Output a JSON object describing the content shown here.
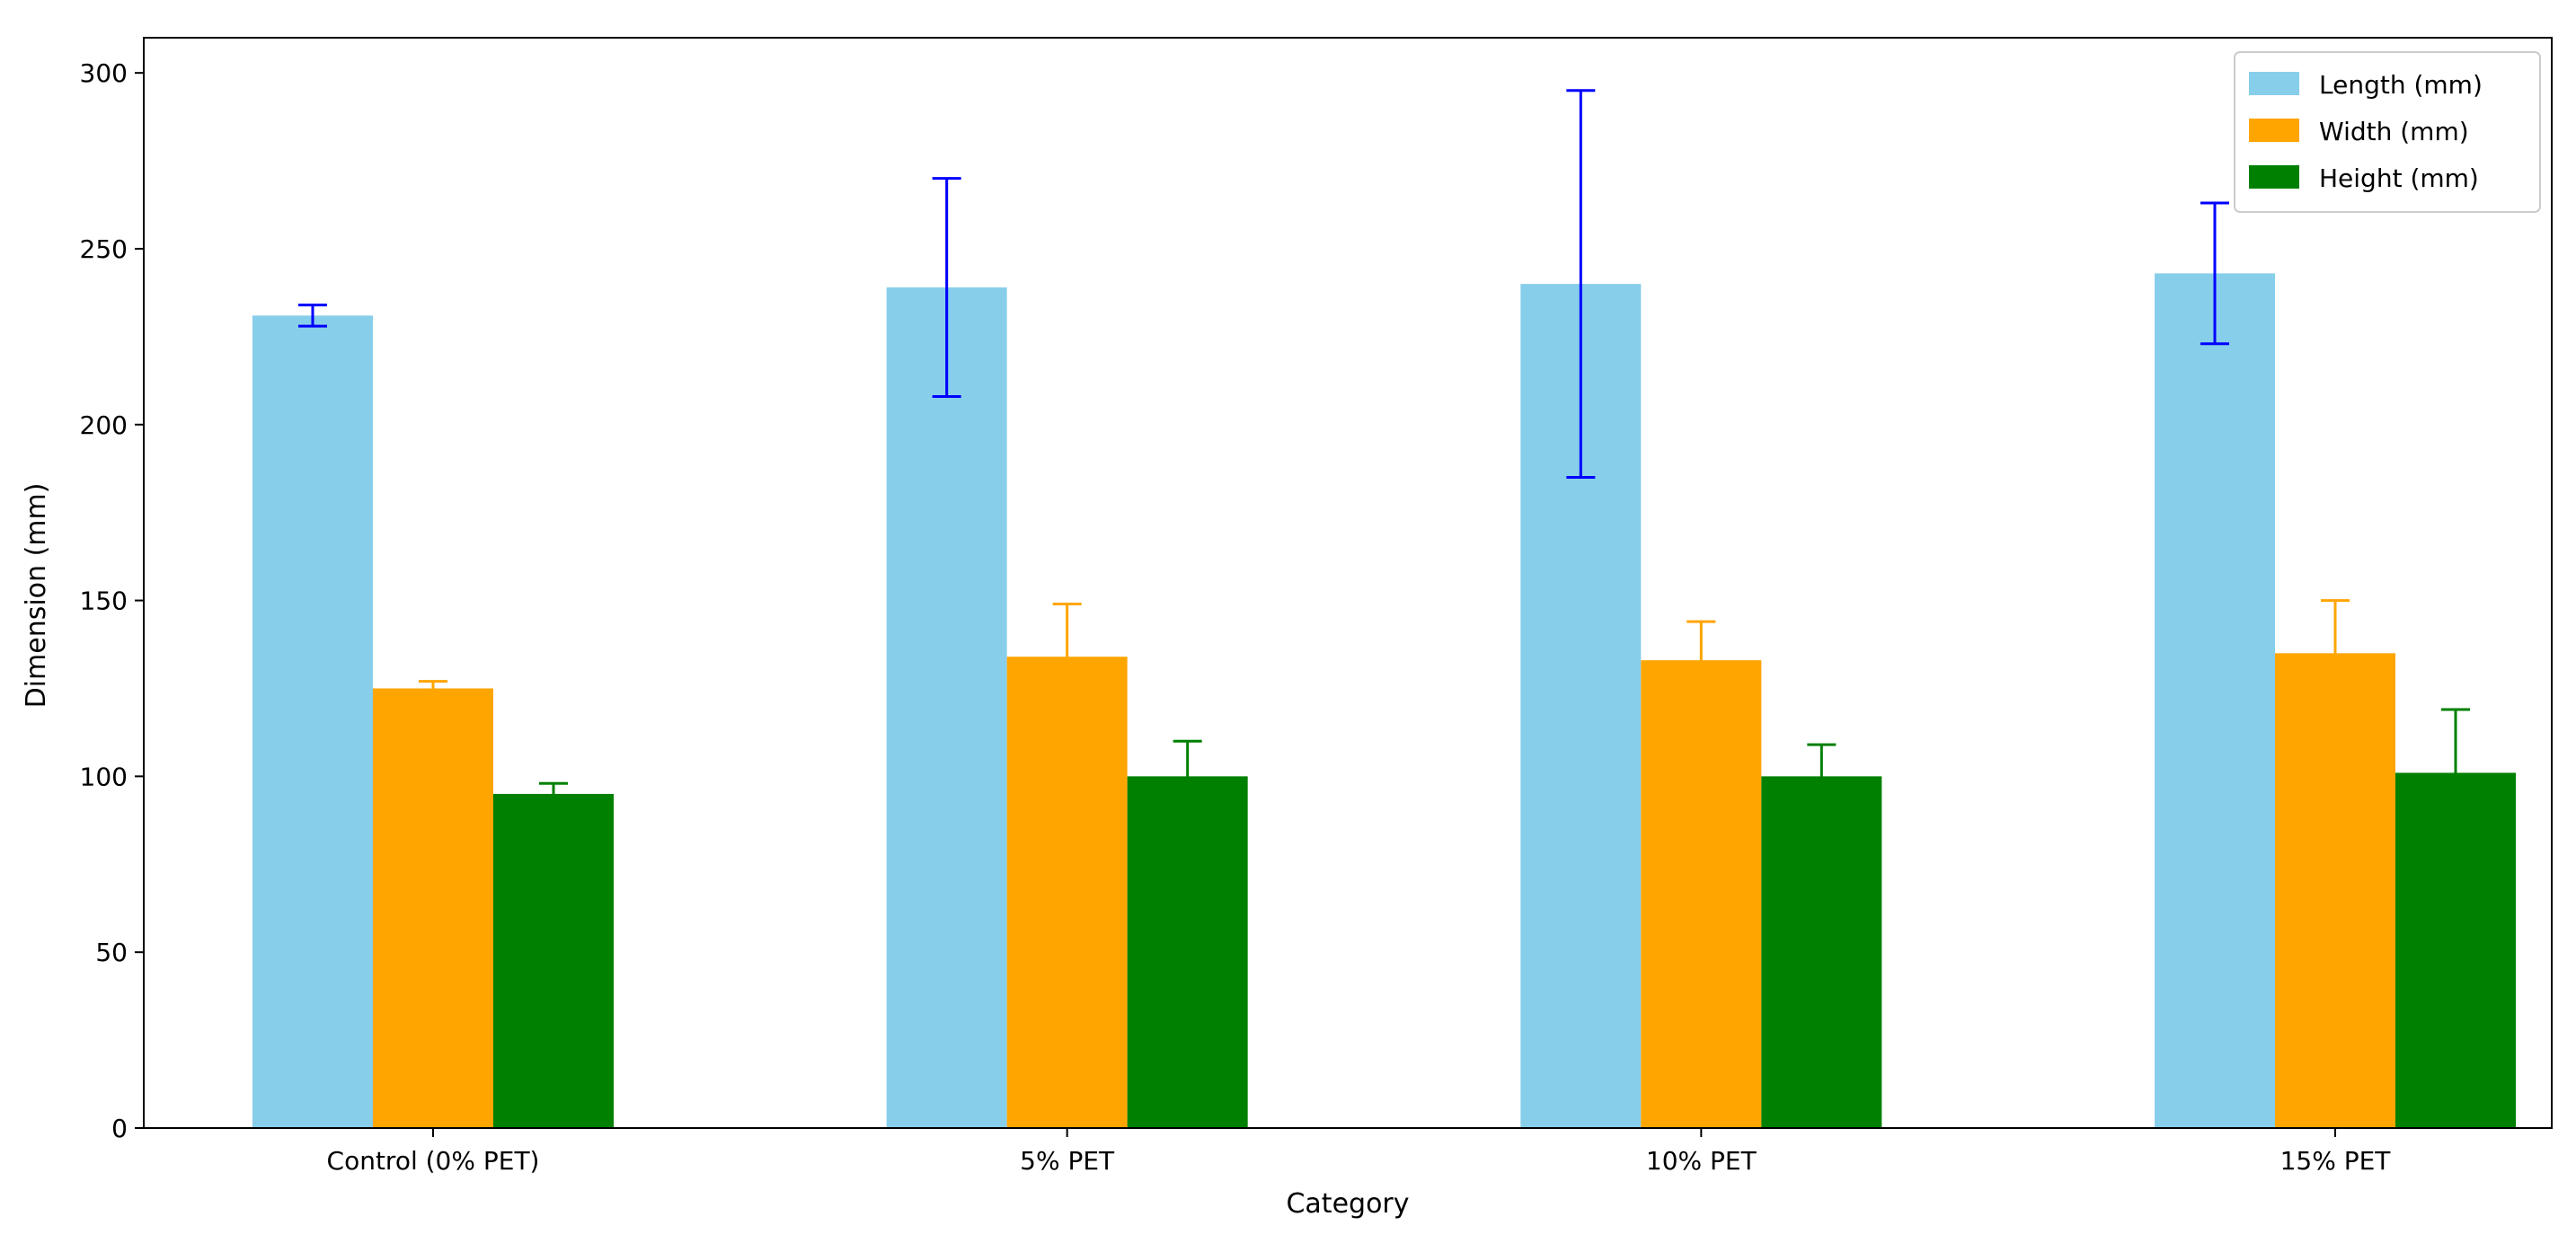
{
  "chart_data": {
    "type": "bar",
    "title": "",
    "xlabel": "Category",
    "ylabel": "Dimension (mm)",
    "ylim": [
      0,
      310
    ],
    "yticks": [
      0,
      50,
      100,
      150,
      200,
      250,
      300
    ],
    "categories": [
      "Control (0% PET)",
      "5% PET",
      "10% PET",
      "15% PET"
    ],
    "series": [
      {
        "name": "Length (mm)",
        "color": "#87CEEB",
        "error_color": "#0000FF",
        "values": [
          231,
          239,
          240,
          243
        ],
        "errors": [
          3,
          31,
          55,
          20
        ]
      },
      {
        "name": "Width (mm)",
        "color": "#FFA500",
        "error_color": "#FFA500",
        "values": [
          125,
          134,
          133,
          135
        ],
        "errors": [
          2,
          15,
          11,
          15
        ]
      },
      {
        "name": "Height (mm)",
        "color": "#008000",
        "error_color": "#008000",
        "values": [
          95,
          100,
          100,
          101
        ],
        "errors": [
          3,
          10,
          9,
          18
        ]
      }
    ],
    "legend_position": "top-right",
    "grid": false
  }
}
